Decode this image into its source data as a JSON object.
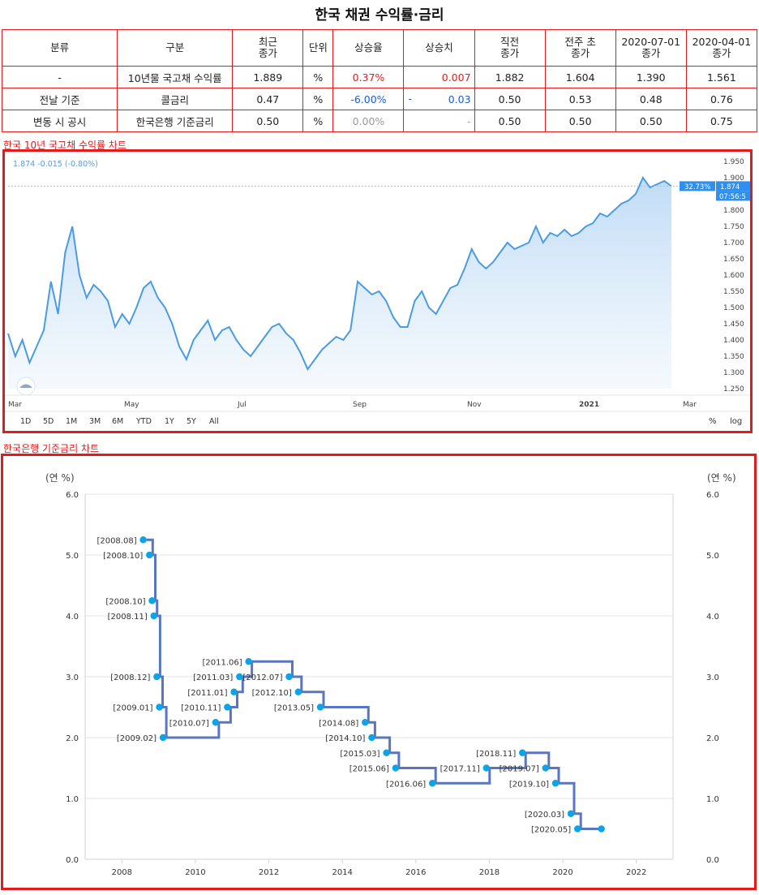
{
  "page_title": "한국 채권 수익률·금리",
  "table": {
    "headers": [
      "분류",
      "구분",
      "최근\n종가",
      "단위",
      "상승율",
      "상승치",
      "직전\n종가",
      "전주 초\n종가",
      "2020-07-01\n종가",
      "2020-04-01\n종가"
    ],
    "rows": [
      {
        "cat": "-",
        "name": "10년물 국고채 수익률",
        "last": "1.889",
        "unit": "%",
        "pct": "0.37%",
        "pct_color": "red",
        "chg_lead": "",
        "chg": "0.007",
        "chg_color": "red",
        "prev": "1.882",
        "week": "1.604",
        "d1": "1.390",
        "d2": "1.561"
      },
      {
        "cat": "전날 기준",
        "name": "콜금리",
        "last": "0.47",
        "unit": "%",
        "pct": "-6.00%",
        "pct_color": "blue",
        "chg_lead": "-",
        "chg": "0.03",
        "chg_color": "blue",
        "prev": "0.50",
        "week": "0.53",
        "d1": "0.48",
        "d2": "0.76"
      },
      {
        "cat": "변동 시 공시",
        "name": "한국은행 기준금리",
        "last": "0.50",
        "unit": "%",
        "pct": "0.00%",
        "pct_color": "gray",
        "chg_lead": "",
        "chg": "-",
        "chg_color": "gray",
        "prev": "0.50",
        "week": "0.50",
        "d1": "0.50",
        "d2": "0.75"
      }
    ]
  },
  "section1_label": "한국 10년 국고채 수익률 차트",
  "section2_label": "한국은행 기준금리 차트",
  "chart_data": [
    {
      "type": "area",
      "title": "",
      "readout": "1.874 -0.015 (-0.80%)",
      "last_value_label": "1.874",
      "pct_badge": "32.73%",
      "time_badge": "07:56:5",
      "x_tick_labels": [
        "Mar",
        "May",
        "Jul",
        "Sep",
        "Nov",
        "2021",
        "Mar"
      ],
      "y_tick_labels": [
        "1.950",
        "1.900",
        "1.850",
        "1.800",
        "1.750",
        "1.700",
        "1.650",
        "1.600",
        "1.550",
        "1.500",
        "1.450",
        "1.400",
        "1.350",
        "1.300",
        "1.250"
      ],
      "ylim": [
        1.25,
        1.95
      ],
      "range_buttons": [
        "1D",
        "5D",
        "1M",
        "3M",
        "6M",
        "YTD",
        "1Y",
        "5Y",
        "All"
      ],
      "scale_buttons": [
        "%",
        "log"
      ],
      "line_color": "#4a9be6",
      "x": [
        0,
        1,
        2,
        3,
        4,
        5,
        6,
        7,
        8,
        9,
        10,
        11,
        12,
        13,
        14,
        15,
        16,
        17,
        18,
        19,
        20,
        21,
        22,
        23,
        24,
        25,
        26,
        27,
        28,
        29,
        30,
        31,
        32,
        33,
        34,
        35,
        36,
        37,
        38,
        39,
        40,
        41,
        42,
        43,
        44,
        45,
        46,
        47,
        48,
        49,
        50,
        51,
        52,
        53,
        54,
        55,
        56,
        57,
        58,
        59,
        60,
        61,
        62,
        63,
        64,
        65,
        66,
        67,
        68,
        69,
        70,
        71,
        72,
        73,
        74,
        75,
        76,
        77,
        78,
        79,
        80,
        81,
        82,
        83,
        84,
        85,
        86,
        87,
        88,
        89,
        90,
        91,
        92,
        93,
        94,
        95,
        96,
        97,
        98,
        99,
        100
      ],
      "values": [
        1.42,
        1.35,
        1.4,
        1.33,
        1.38,
        1.43,
        1.58,
        1.48,
        1.67,
        1.75,
        1.6,
        1.53,
        1.57,
        1.55,
        1.52,
        1.44,
        1.48,
        1.45,
        1.5,
        1.56,
        1.58,
        1.53,
        1.5,
        1.45,
        1.38,
        1.34,
        1.4,
        1.43,
        1.46,
        1.4,
        1.43,
        1.44,
        1.4,
        1.37,
        1.35,
        1.38,
        1.41,
        1.44,
        1.45,
        1.42,
        1.4,
        1.36,
        1.31,
        1.34,
        1.37,
        1.39,
        1.41,
        1.4,
        1.43,
        1.58,
        1.56,
        1.54,
        1.55,
        1.52,
        1.47,
        1.44,
        1.44,
        1.52,
        1.55,
        1.5,
        1.48,
        1.52,
        1.56,
        1.57,
        1.62,
        1.68,
        1.64,
        1.62,
        1.64,
        1.67,
        1.7,
        1.68,
        1.69,
        1.7,
        1.75,
        1.7,
        1.73,
        1.72,
        1.74,
        1.72,
        1.73,
        1.75,
        1.76,
        1.79,
        1.78,
        1.8,
        1.82,
        1.83,
        1.85,
        1.9,
        1.87,
        1.88,
        1.89,
        1.874,
        1.874,
        1.874,
        1.874,
        1.874,
        1.874,
        1.874,
        1.874
      ]
    },
    {
      "type": "line",
      "title": "",
      "ylabel_left": "(연 %)",
      "ylabel_right": "(연 %)",
      "ylim": [
        0,
        6
      ],
      "xlim": [
        2007,
        2023
      ],
      "y_ticks": [
        0,
        1,
        2,
        3,
        4,
        5,
        6
      ],
      "y_tick_labels": [
        "0.0",
        "1.0",
        "2.0",
        "3.0",
        "4.0",
        "5.0",
        "6.0"
      ],
      "x_ticks": [
        2008,
        2010,
        2012,
        2014,
        2016,
        2018,
        2020,
        2022
      ],
      "x_tick_labels": [
        "2008",
        "2010",
        "2012",
        "2014",
        "2016",
        "2018",
        "2020",
        "2022"
      ],
      "line_color": "#5a76c0",
      "marker_color": "#0ba4e6",
      "points": [
        {
          "x": 2008.58,
          "y": 5.25,
          "label": "[2008.08]",
          "side": "L"
        },
        {
          "x": 2008.75,
          "y": 5.0,
          "label": "[2008.10]",
          "side": "L"
        },
        {
          "x": 2008.82,
          "y": 4.25,
          "label": "[2008.10]",
          "side": "L"
        },
        {
          "x": 2008.87,
          "y": 4.0,
          "label": "[2008.11]",
          "side": "L"
        },
        {
          "x": 2008.95,
          "y": 3.0,
          "label": "[2008.12]",
          "side": "L"
        },
        {
          "x": 2009.02,
          "y": 2.5,
          "label": "[2009.01]",
          "side": "L"
        },
        {
          "x": 2009.12,
          "y": 2.0,
          "label": "[2009.02]",
          "side": "L"
        },
        {
          "x": 2010.55,
          "y": 2.25,
          "label": "[2010.07]",
          "side": "L"
        },
        {
          "x": 2010.87,
          "y": 2.5,
          "label": "[2010.11]",
          "side": "L"
        },
        {
          "x": 2011.05,
          "y": 2.75,
          "label": "[2011.01]",
          "side": "L"
        },
        {
          "x": 2011.2,
          "y": 3.0,
          "label": "[2011.03]",
          "side": "L"
        },
        {
          "x": 2011.45,
          "y": 3.25,
          "label": "[2011.06]",
          "side": "L"
        },
        {
          "x": 2012.55,
          "y": 3.0,
          "label": "[2012.07]",
          "side": "L"
        },
        {
          "x": 2012.8,
          "y": 2.75,
          "label": "[2012.10]",
          "side": "L"
        },
        {
          "x": 2013.4,
          "y": 2.5,
          "label": "[2013.05]",
          "side": "L"
        },
        {
          "x": 2014.62,
          "y": 2.25,
          "label": "[2014.08]",
          "side": "L"
        },
        {
          "x": 2014.8,
          "y": 2.0,
          "label": "[2014.10]",
          "side": "L"
        },
        {
          "x": 2015.2,
          "y": 1.75,
          "label": "[2015.03]",
          "side": "L"
        },
        {
          "x": 2015.45,
          "y": 1.5,
          "label": "[2015.06]",
          "side": "L"
        },
        {
          "x": 2016.45,
          "y": 1.25,
          "label": "[2016.06]",
          "side": "L"
        },
        {
          "x": 2017.92,
          "y": 1.5,
          "label": "[2017.11]",
          "side": "L"
        },
        {
          "x": 2018.9,
          "y": 1.75,
          "label": "[2018.11]",
          "side": "L"
        },
        {
          "x": 2019.53,
          "y": 1.5,
          "label": "[2019.07]",
          "side": "L"
        },
        {
          "x": 2019.8,
          "y": 1.25,
          "label": "[2019.10]",
          "side": "L"
        },
        {
          "x": 2020.22,
          "y": 0.75,
          "label": "[2020.03]",
          "side": "L"
        },
        {
          "x": 2020.4,
          "y": 0.5,
          "label": "[2020.05]",
          "side": "L"
        },
        {
          "x": 2021.05,
          "y": 0.5,
          "label": "",
          "side": "L"
        }
      ]
    }
  ]
}
